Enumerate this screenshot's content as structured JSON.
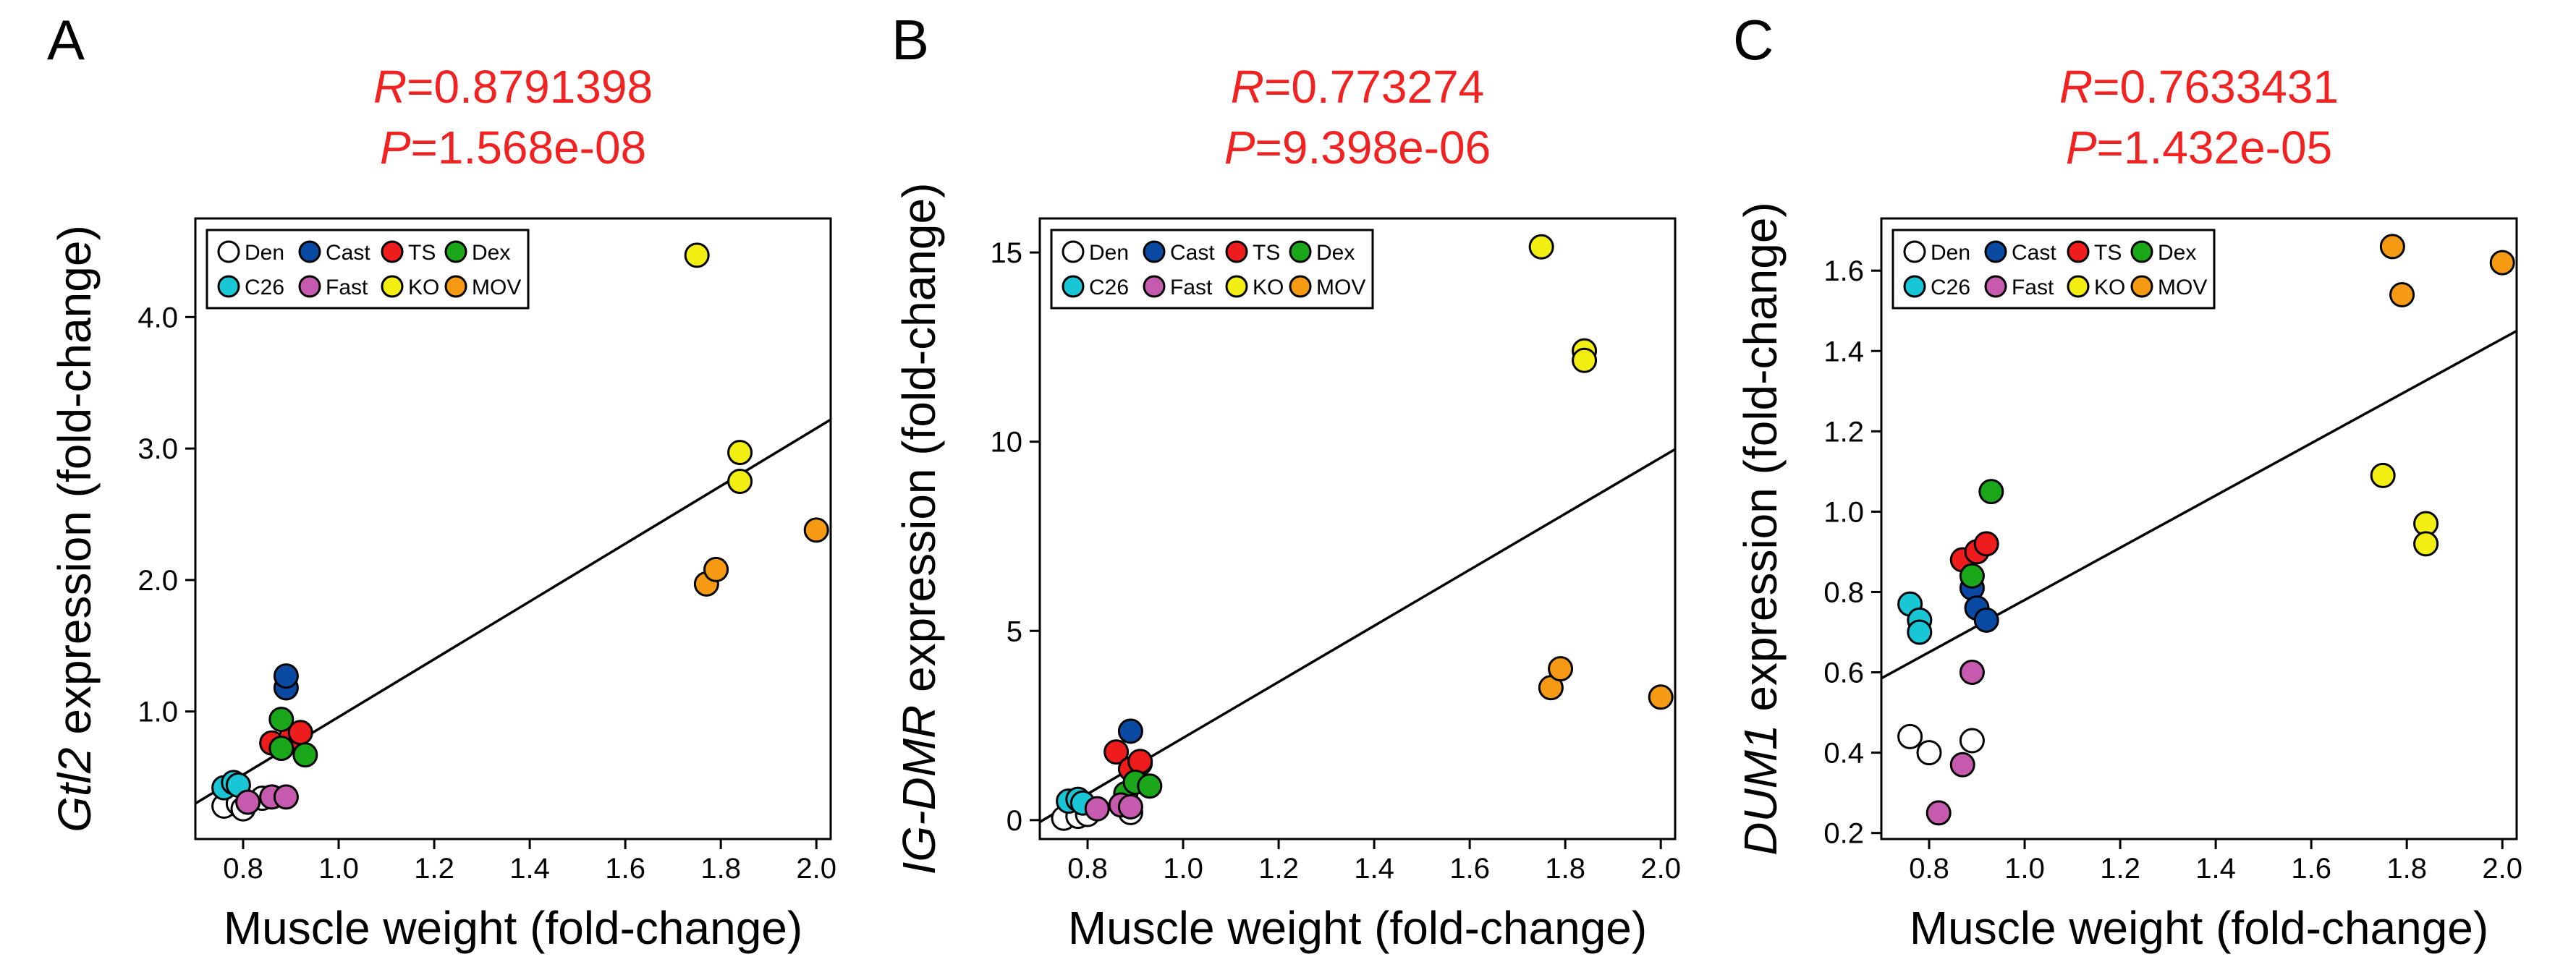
{
  "legend": {
    "groups": [
      "Den",
      "Cast",
      "TS",
      "Dex",
      "C26",
      "Fast",
      "KO",
      "MOV"
    ],
    "colors": {
      "Den": "#ffffff",
      "Cast": "#0b4aa2",
      "TS": "#ee1c1c",
      "Dex": "#1aa81a",
      "C26": "#18c6d6",
      "Fast": "#c65aaf",
      "KO": "#f2ee12",
      "MOV": "#f59a12"
    }
  },
  "stats_color": "#f02222",
  "chart_data": [
    {
      "type": "scatter",
      "panel_letter": "A",
      "stat_r_label": "R",
      "stat_r_value": "=0.8791398",
      "stat_p_label": "P",
      "stat_p_value": "=1.568e-08",
      "ylabel_italic": "Gtl2",
      "ylabel_rest": " expression (fold-change)",
      "xlabel": "Muscle weight (fold-change)",
      "xlim": [
        0.7,
        2.03
      ],
      "ylim": [
        0.03,
        4.75
      ],
      "xticks": [
        "0.8",
        "1.0",
        "1.2",
        "1.4",
        "1.6",
        "1.8",
        "2.0"
      ],
      "yticks": [
        "1.0",
        "2.0",
        "3.0",
        "4.0"
      ],
      "fit_line": [
        [
          0.7,
          0.3
        ],
        [
          2.03,
          3.22
        ]
      ],
      "series": [
        {
          "name": "Den",
          "points": [
            [
              0.76,
              0.28
            ],
            [
              0.79,
              0.3
            ],
            [
              0.8,
              0.26
            ],
            [
              0.84,
              0.34
            ]
          ]
        },
        {
          "name": "Cast",
          "points": [
            [
              0.89,
              1.18
            ],
            [
              0.89,
              1.27
            ],
            [
              0.91,
              0.78
            ]
          ]
        },
        {
          "name": "TS",
          "points": [
            [
              0.86,
              0.76
            ],
            [
              0.9,
              0.8
            ],
            [
              0.92,
              0.84
            ]
          ]
        },
        {
          "name": "Dex",
          "points": [
            [
              0.88,
              0.94
            ],
            [
              0.88,
              0.72
            ],
            [
              0.93,
              0.67
            ]
          ]
        },
        {
          "name": "C26",
          "points": [
            [
              0.76,
              0.42
            ],
            [
              0.78,
              0.46
            ],
            [
              0.79,
              0.44
            ]
          ]
        },
        {
          "name": "Fast",
          "points": [
            [
              0.81,
              0.31
            ],
            [
              0.86,
              0.35
            ],
            [
              0.89,
              0.35
            ]
          ]
        },
        {
          "name": "KO",
          "points": [
            [
              1.75,
              4.47
            ],
            [
              1.84,
              2.97
            ],
            [
              1.84,
              2.75
            ]
          ]
        },
        {
          "name": "MOV",
          "points": [
            [
              1.77,
              1.97
            ],
            [
              1.79,
              2.08
            ],
            [
              2.0,
              2.38
            ]
          ]
        }
      ]
    },
    {
      "type": "scatter",
      "panel_letter": "B",
      "stat_r_label": "R",
      "stat_r_value": "=0.773274",
      "stat_p_label": "P",
      "stat_p_value": "=9.398e-06",
      "ylabel_italic": "IG-DMR",
      "ylabel_rest": " expression (fold-change)",
      "xlabel": "Muscle weight (fold-change)",
      "xlim": [
        0.7,
        2.03
      ],
      "ylim": [
        -0.5,
        15.9
      ],
      "xticks": [
        "0.8",
        "1.0",
        "1.2",
        "1.4",
        "1.6",
        "1.8",
        "2.0"
      ],
      "yticks": [
        "0",
        "5",
        "10",
        "15"
      ],
      "fit_line": [
        [
          0.7,
          -0.05
        ],
        [
          2.03,
          9.8
        ]
      ],
      "series": [
        {
          "name": "Den",
          "points": [
            [
              0.75,
              0.05
            ],
            [
              0.78,
              0.1
            ],
            [
              0.8,
              0.15
            ],
            [
              0.89,
              0.2
            ]
          ]
        },
        {
          "name": "Cast",
          "points": [
            [
              0.89,
              2.35
            ],
            [
              0.9,
              1.2
            ],
            [
              0.91,
              1.5
            ]
          ]
        },
        {
          "name": "TS",
          "points": [
            [
              0.86,
              1.8
            ],
            [
              0.89,
              1.35
            ],
            [
              0.91,
              1.55
            ]
          ]
        },
        {
          "name": "Dex",
          "points": [
            [
              0.88,
              0.7
            ],
            [
              0.9,
              1.0
            ],
            [
              0.93,
              0.9
            ]
          ]
        },
        {
          "name": "C26",
          "points": [
            [
              0.76,
              0.5
            ],
            [
              0.78,
              0.55
            ],
            [
              0.79,
              0.45
            ]
          ]
        },
        {
          "name": "Fast",
          "points": [
            [
              0.82,
              0.3
            ],
            [
              0.87,
              0.4
            ],
            [
              0.89,
              0.35
            ]
          ]
        },
        {
          "name": "KO",
          "points": [
            [
              1.75,
              15.15
            ],
            [
              1.84,
              12.4
            ],
            [
              1.84,
              12.15
            ]
          ]
        },
        {
          "name": "MOV",
          "points": [
            [
              1.77,
              3.5
            ],
            [
              1.79,
              4.0
            ],
            [
              2.0,
              3.25
            ]
          ]
        }
      ]
    },
    {
      "type": "scatter",
      "panel_letter": "C",
      "stat_r_label": "R",
      "stat_r_value": "=0.7633431",
      "stat_p_label": "P",
      "stat_p_value": "=1.432e-05",
      "ylabel_italic": "DUM1",
      "ylabel_rest": " expression (fold-change)",
      "xlabel": "Muscle weight (fold-change)",
      "xlim": [
        0.7,
        2.03
      ],
      "ylim": [
        0.185,
        1.73
      ],
      "xticks": [
        "0.8",
        "1.0",
        "1.2",
        "1.4",
        "1.6",
        "1.8",
        "2.0"
      ],
      "yticks": [
        "0.2",
        "0.4",
        "0.6",
        "0.8",
        "1.0",
        "1.2",
        "1.4",
        "1.6"
      ],
      "fit_line": [
        [
          0.7,
          0.585
        ],
        [
          2.03,
          1.45
        ]
      ],
      "series": [
        {
          "name": "Den",
          "points": [
            [
              0.76,
              0.44
            ],
            [
              0.8,
              0.4
            ],
            [
              0.89,
              0.43
            ]
          ]
        },
        {
          "name": "Cast",
          "points": [
            [
              0.89,
              0.81
            ],
            [
              0.9,
              0.76
            ],
            [
              0.92,
              0.73
            ]
          ]
        },
        {
          "name": "TS",
          "points": [
            [
              0.87,
              0.88
            ],
            [
              0.9,
              0.9
            ],
            [
              0.92,
              0.92
            ]
          ]
        },
        {
          "name": "Dex",
          "points": [
            [
              0.89,
              0.84
            ],
            [
              0.93,
              1.05
            ]
          ]
        },
        {
          "name": "C26",
          "points": [
            [
              0.76,
              0.77
            ],
            [
              0.78,
              0.73
            ],
            [
              0.78,
              0.7
            ]
          ]
        },
        {
          "name": "Fast",
          "points": [
            [
              0.82,
              0.25
            ],
            [
              0.87,
              0.37
            ],
            [
              0.89,
              0.6
            ]
          ]
        },
        {
          "name": "KO",
          "points": [
            [
              1.75,
              1.09
            ],
            [
              1.84,
              0.97
            ],
            [
              1.84,
              0.92
            ]
          ]
        },
        {
          "name": "MOV",
          "points": [
            [
              1.77,
              1.66
            ],
            [
              1.79,
              1.54
            ],
            [
              2.0,
              1.62
            ]
          ]
        }
      ]
    }
  ]
}
